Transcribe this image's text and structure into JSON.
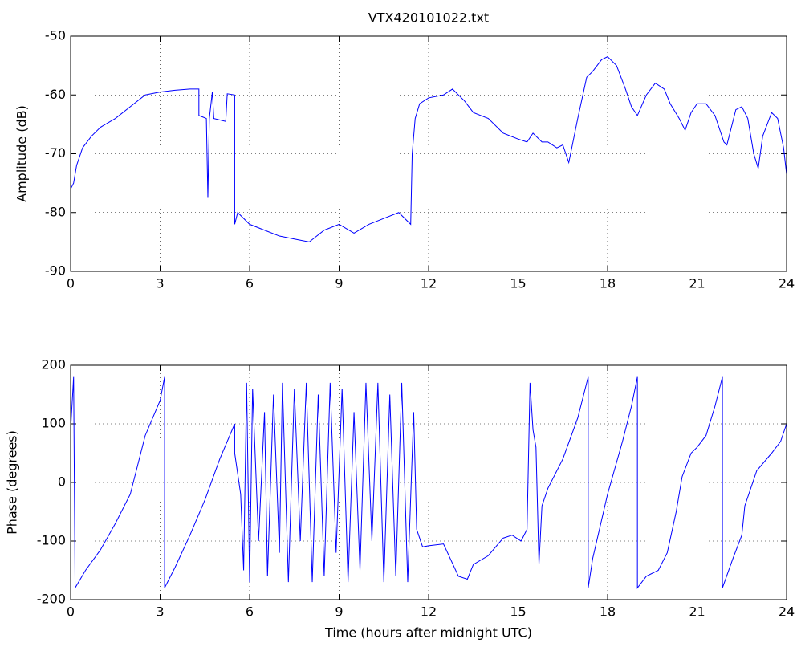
{
  "chart_data": [
    {
      "type": "line",
      "title": "VTX420101022.txt",
      "y_label": "Amplitude (dB)",
      "color": "#0000ff",
      "grid": true,
      "xlim": [
        0,
        24
      ],
      "xticks": [
        0,
        3,
        6,
        9,
        12,
        15,
        18,
        21,
        24
      ],
      "ylim": [
        -90,
        -50
      ],
      "yticks": [
        -90,
        -80,
        -70,
        -60,
        -50
      ],
      "x": [
        0,
        0.1,
        0.2,
        0.4,
        0.7,
        1,
        1.5,
        2,
        2.5,
        3,
        3.5,
        4,
        4.3,
        4.3,
        4.55,
        4.6,
        4.65,
        4.75,
        4.8,
        5.2,
        5.25,
        5.5,
        5.5,
        5.6,
        6,
        6.5,
        7,
        7.5,
        8,
        8.5,
        9,
        9.5,
        10,
        10.5,
        11,
        11.4,
        11.45,
        11.55,
        11.7,
        12,
        12.5,
        12.8,
        13.2,
        13.5,
        14,
        14.5,
        15,
        15.3,
        15.5,
        15.8,
        16,
        16.3,
        16.5,
        16.7,
        16.8,
        17,
        17.3,
        17.5,
        17.8,
        18,
        18.3,
        18.6,
        18.8,
        19,
        19.3,
        19.6,
        19.9,
        20.1,
        20.4,
        20.6,
        20.8,
        21,
        21.3,
        21.6,
        21.9,
        22,
        22.3,
        22.5,
        22.7,
        22.9,
        23.05,
        23.2,
        23.5,
        23.7,
        23.9,
        24
      ],
      "values": [
        -76,
        -75,
        -72,
        -69,
        -67,
        -65.5,
        -64,
        -62,
        -60,
        -59.5,
        -59.2,
        -59,
        -59,
        -63.5,
        -64,
        -77.5,
        -64,
        -59.5,
        -64,
        -64.5,
        -59.8,
        -60,
        -82,
        -80,
        -82,
        -83,
        -84,
        -84.5,
        -85,
        -83,
        -82,
        -83.5,
        -82,
        -81,
        -80,
        -82,
        -70,
        -64,
        -61.5,
        -60.5,
        -60,
        -59,
        -61,
        -63,
        -64,
        -66.5,
        -67.5,
        -68,
        -66.5,
        -68,
        -68,
        -69,
        -68.5,
        -71.5,
        -69,
        -64,
        -57,
        -56,
        -54,
        -53.5,
        -55,
        -59,
        -62,
        -63.5,
        -60,
        -58,
        -59,
        -61.5,
        -64,
        -66,
        -63,
        -61.5,
        -61.5,
        -63.5,
        -68,
        -68.5,
        -62.5,
        -62,
        -64,
        -70,
        -72.5,
        -67,
        -63,
        -64,
        -69,
        -73.5
      ]
    },
    {
      "type": "line",
      "x_label": "Time (hours after midnight UTC)",
      "y_label": "Phase (degrees)",
      "color": "#0000ff",
      "grid": true,
      "xlim": [
        0,
        24
      ],
      "xticks": [
        0,
        3,
        6,
        9,
        12,
        15,
        18,
        21,
        24
      ],
      "ylim": [
        -200,
        200
      ],
      "yticks": [
        -200,
        -100,
        0,
        100,
        200
      ],
      "x": [
        0,
        0.1,
        0.15,
        0.5,
        1,
        1.5,
        2,
        2.5,
        3,
        3.15,
        3.15,
        3.5,
        4,
        4.5,
        5,
        5.5,
        5.5,
        5.7,
        5.8,
        5.9,
        6,
        6.1,
        6.3,
        6.5,
        6.6,
        6.8,
        7,
        7.1,
        7.3,
        7.5,
        7.7,
        7.9,
        8.1,
        8.3,
        8.5,
        8.7,
        8.9,
        9.1,
        9.3,
        9.5,
        9.7,
        9.9,
        10.1,
        10.3,
        10.5,
        10.7,
        10.9,
        11.1,
        11.3,
        11.5,
        11.6,
        11.8,
        12,
        12.5,
        13,
        13.3,
        13.5,
        14,
        14.5,
        14.8,
        15.1,
        15.3,
        15.4,
        15.5,
        15.6,
        15.7,
        15.8,
        16,
        16.5,
        17,
        17.3,
        17.35,
        17.35,
        17.5,
        18,
        18.5,
        18.8,
        19,
        19,
        19.3,
        19.7,
        20,
        20.3,
        20.5,
        20.8,
        21,
        21.3,
        21.6,
        21.85,
        21.85,
        22.2,
        22.5,
        22.6,
        23,
        23.5,
        23.8,
        24
      ],
      "values": [
        90,
        180,
        -180,
        -150,
        -115,
        -70,
        -20,
        80,
        140,
        180,
        -180,
        -145,
        -90,
        -30,
        40,
        100,
        50,
        -20,
        -150,
        170,
        -170,
        160,
        -100,
        120,
        -160,
        150,
        -120,
        170,
        -170,
        160,
        -100,
        170,
        -170,
        150,
        -160,
        170,
        -120,
        160,
        -170,
        120,
        -150,
        170,
        -100,
        170,
        -170,
        150,
        -160,
        170,
        -170,
        120,
        -80,
        -110,
        -108,
        -105,
        -160,
        -165,
        -140,
        -125,
        -95,
        -90,
        -100,
        -80,
        170,
        90,
        60,
        -140,
        -40,
        -10,
        40,
        110,
        170,
        180,
        -180,
        -130,
        -20,
        70,
        130,
        180,
        -180,
        -160,
        -150,
        -120,
        -50,
        10,
        50,
        60,
        80,
        130,
        180,
        -180,
        -130,
        -90,
        -40,
        20,
        50,
        70,
        100
      ]
    }
  ]
}
